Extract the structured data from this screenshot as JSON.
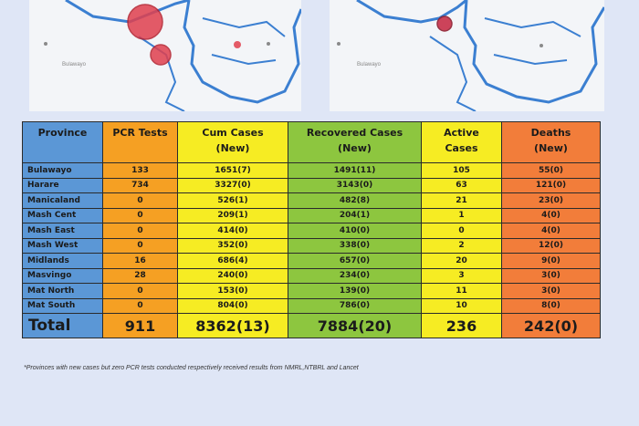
{
  "colors": {
    "province": "#5b97d6",
    "pcr": "#f5a023",
    "cum": "#f6ec23",
    "recovered": "#8dc63f",
    "active": "#f6ec23",
    "deaths": "#f27d3a",
    "map_marker": "#e0404e",
    "map_border": "#3b7fd1"
  },
  "maps": [
    {
      "place_label": "Bulawayo"
    },
    {
      "place_label": "Bulawayo"
    }
  ],
  "table": {
    "headers": {
      "province": "Province",
      "pcr": "PCR Tests",
      "cum_line1": "Cum Cases",
      "cum_line2": "(New)",
      "rec_line1": "Recovered Cases",
      "rec_line2": "(New)",
      "act_line1": "Active",
      "act_line2": "Cases",
      "dth_line1": "Deaths",
      "dth_line2": "(New)"
    },
    "rows": [
      {
        "province": "Bulawayo",
        "pcr": "133",
        "cum": "1651(7)",
        "recovered": "1491(11)",
        "active": "105",
        "deaths": "55(0)"
      },
      {
        "province": "Harare",
        "pcr": "734",
        "cum": "3327(0)",
        "recovered": "3143(0)",
        "active": "63",
        "deaths": "121(0)"
      },
      {
        "province": "Manicaland",
        "pcr": "0",
        "cum": "526(1)",
        "recovered": "482(8)",
        "active": "21",
        "deaths": "23(0)"
      },
      {
        "province": "Mash Cent",
        "pcr": "0",
        "cum": "209(1)",
        "recovered": "204(1)",
        "active": "1",
        "deaths": "4(0)"
      },
      {
        "province": "Mash East",
        "pcr": "0",
        "cum": "414(0)",
        "recovered": "410(0)",
        "active": "0",
        "deaths": "4(0)"
      },
      {
        "province": "Mash West",
        "pcr": "0",
        "cum": "352(0)",
        "recovered": "338(0)",
        "active": "2",
        "deaths": "12(0)"
      },
      {
        "province": "Midlands",
        "pcr": "16",
        "cum": "686(4)",
        "recovered": "657(0)",
        "active": "20",
        "deaths": "9(0)"
      },
      {
        "province": "Masvingo",
        "pcr": "28",
        "cum": "240(0)",
        "recovered": "234(0)",
        "active": "3",
        "deaths": "3(0)"
      },
      {
        "province": "Mat North",
        "pcr": "0",
        "cum": "153(0)",
        "recovered": "139(0)",
        "active": "11",
        "deaths": "3(0)"
      },
      {
        "province": "Mat South",
        "pcr": "0",
        "cum": "804(0)",
        "recovered": "786(0)",
        "active": "10",
        "deaths": "8(0)"
      }
    ],
    "total": {
      "label": "Total",
      "pcr": "911",
      "cum": "8362(13)",
      "recovered": "7884(20)",
      "active": "236",
      "deaths": "242(0)"
    }
  },
  "footnote": "*Provinces with new cases but zero PCR tests conducted respectively received results from NMRL,NTBRL and Lancet"
}
